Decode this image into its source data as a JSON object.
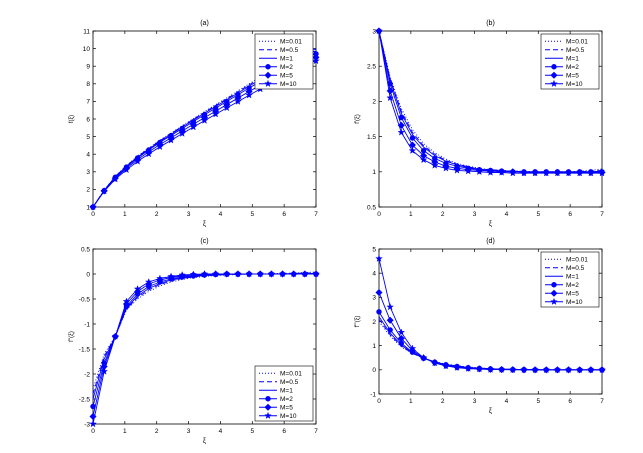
{
  "chart_data": [
    {
      "type": "line",
      "title": "(a)",
      "xlabel": "ξ",
      "ylabel": "f(ξ)",
      "xlim": [
        0,
        7
      ],
      "ylim": [
        1,
        11
      ],
      "xticks": [
        "0",
        "1",
        "2",
        "3",
        "4",
        "5",
        "6",
        "7"
      ],
      "yticks": [
        "1",
        "2",
        "3",
        "4",
        "5",
        "6",
        "7",
        "8",
        "9",
        "10",
        "11"
      ],
      "legend_position": "top-right",
      "x": [
        0,
        0.35,
        0.7,
        1.05,
        1.4,
        1.75,
        2.1,
        2.45,
        2.8,
        3.15,
        3.5,
        3.85,
        4.2,
        4.55,
        4.9,
        5.25,
        5.6,
        5.95,
        6.3,
        6.65,
        7.0
      ],
      "series": [
        {
          "name": "M=0.01",
          "values": [
            1.0,
            1.95,
            2.75,
            3.35,
            3.9,
            4.35,
            4.8,
            5.2,
            5.62,
            6.02,
            6.42,
            6.82,
            7.2,
            7.6,
            8.0,
            8.38,
            8.78,
            9.16,
            9.55,
            9.95,
            10.0
          ]
        },
        {
          "name": "M=0.5",
          "values": [
            1.0,
            1.95,
            2.74,
            3.33,
            3.87,
            4.32,
            4.77,
            5.17,
            5.58,
            5.98,
            6.38,
            6.77,
            7.15,
            7.55,
            7.94,
            8.32,
            8.71,
            9.09,
            9.48,
            9.86,
            9.95
          ]
        },
        {
          "name": "M=1",
          "values": [
            1.0,
            1.94,
            2.72,
            3.31,
            3.84,
            4.29,
            4.73,
            5.13,
            5.54,
            5.93,
            6.33,
            6.71,
            7.09,
            7.48,
            7.87,
            8.25,
            8.63,
            9.01,
            9.39,
            9.77,
            9.85
          ]
        },
        {
          "name": "M=2",
          "values": [
            1.0,
            1.93,
            2.69,
            3.27,
            3.79,
            4.24,
            4.67,
            5.06,
            5.46,
            5.85,
            6.24,
            6.62,
            7.0,
            7.38,
            7.76,
            8.13,
            8.51,
            8.88,
            9.25,
            9.63,
            9.7
          ]
        },
        {
          "name": "M=5",
          "values": [
            1.0,
            1.91,
            2.64,
            3.2,
            3.7,
            4.13,
            4.55,
            4.93,
            5.32,
            5.7,
            6.08,
            6.45,
            6.82,
            7.19,
            7.56,
            7.92,
            8.29,
            8.65,
            9.01,
            9.38,
            9.5
          ]
        },
        {
          "name": "M=10",
          "values": [
            1.0,
            1.89,
            2.58,
            3.11,
            3.59,
            4.01,
            4.42,
            4.79,
            5.17,
            5.54,
            5.91,
            6.27,
            6.63,
            6.99,
            7.35,
            7.7,
            8.06,
            8.41,
            8.76,
            9.12,
            9.3
          ]
        }
      ]
    },
    {
      "type": "line",
      "title": "(b)",
      "xlabel": "ξ",
      "ylabel": "f'(ξ)",
      "xlim": [
        0,
        7
      ],
      "ylim": [
        0.5,
        3
      ],
      "xticks": [
        "0",
        "1",
        "2",
        "3",
        "4",
        "5",
        "6",
        "7"
      ],
      "yticks": [
        "0.5",
        "1",
        "1.5",
        "2",
        "2.5",
        "3"
      ],
      "legend_position": "top-right",
      "x": [
        0,
        0.35,
        0.7,
        1.05,
        1.4,
        1.75,
        2.1,
        2.45,
        2.8,
        3.15,
        3.5,
        3.85,
        4.2,
        4.55,
        4.9,
        5.25,
        5.6,
        5.95,
        6.3,
        6.65,
        7.0
      ],
      "series": [
        {
          "name": "M=0.01",
          "values": [
            3.0,
            2.35,
            1.9,
            1.6,
            1.4,
            1.27,
            1.18,
            1.12,
            1.08,
            1.05,
            1.03,
            1.02,
            1.01,
            1.01,
            1.0,
            1.0,
            1.0,
            1.0,
            1.01,
            1.02,
            1.04
          ]
        },
        {
          "name": "M=0.5",
          "values": [
            3.0,
            2.32,
            1.86,
            1.56,
            1.37,
            1.25,
            1.16,
            1.11,
            1.07,
            1.04,
            1.03,
            1.02,
            1.01,
            1.0,
            1.0,
            1.0,
            1.0,
            1.0,
            1.0,
            1.01,
            1.02
          ]
        },
        {
          "name": "M=1",
          "values": [
            3.0,
            2.3,
            1.83,
            1.53,
            1.35,
            1.23,
            1.15,
            1.1,
            1.06,
            1.04,
            1.02,
            1.01,
            1.01,
            1.0,
            1.0,
            1.0,
            1.0,
            1.0,
            1.0,
            1.0,
            1.01
          ]
        },
        {
          "name": "M=2",
          "values": [
            3.0,
            2.25,
            1.77,
            1.48,
            1.3,
            1.19,
            1.12,
            1.08,
            1.05,
            1.03,
            1.02,
            1.01,
            1.0,
            1.0,
            1.0,
            1.0,
            1.0,
            1.0,
            1.0,
            1.0,
            1.0
          ]
        },
        {
          "name": "M=5",
          "values": [
            3.0,
            2.15,
            1.66,
            1.38,
            1.23,
            1.14,
            1.08,
            1.05,
            1.03,
            1.02,
            1.01,
            1.0,
            1.0,
            0.99,
            0.99,
            0.99,
            0.99,
            0.99,
            0.99,
            0.99,
            0.99
          ]
        },
        {
          "name": "M=10",
          "values": [
            3.0,
            2.05,
            1.56,
            1.3,
            1.17,
            1.09,
            1.05,
            1.02,
            1.01,
            1.0,
            0.99,
            0.99,
            0.98,
            0.98,
            0.98,
            0.98,
            0.98,
            0.98,
            0.98,
            0.98,
            0.98
          ]
        }
      ]
    },
    {
      "type": "line",
      "title": "(c)",
      "xlabel": "ξ",
      "ylabel": "f''(ξ)",
      "xlim": [
        0,
        7
      ],
      "ylim": [
        -3,
        0.5
      ],
      "xticks": [
        "0",
        "1",
        "2",
        "3",
        "4",
        "5",
        "6",
        "7"
      ],
      "yticks": [
        "-3",
        "-2.5",
        "-2",
        "-1.5",
        "-1",
        "-0.5",
        "0",
        "0.5"
      ],
      "legend_position": "bottom-right",
      "x": [
        0,
        0.35,
        0.7,
        1.05,
        1.4,
        1.75,
        2.1,
        2.45,
        2.8,
        3.15,
        3.5,
        3.85,
        4.2,
        4.55,
        4.9,
        5.25,
        5.6,
        5.95,
        6.3,
        6.65,
        7.0
      ],
      "series": [
        {
          "name": "M=0.01",
          "values": [
            -2.3,
            -1.6,
            -1.25,
            -0.72,
            -0.5,
            -0.35,
            -0.24,
            -0.16,
            -0.11,
            -0.07,
            -0.05,
            -0.03,
            -0.02,
            -0.01,
            0.0,
            0.0,
            0.01,
            0.01,
            0.02,
            0.03,
            0.04
          ]
        },
        {
          "name": "M=0.5",
          "values": [
            -2.4,
            -1.65,
            -1.25,
            -0.7,
            -0.47,
            -0.32,
            -0.21,
            -0.14,
            -0.09,
            -0.06,
            -0.04,
            -0.02,
            -0.01,
            -0.01,
            0.0,
            0.0,
            0.0,
            0.01,
            0.01,
            0.02,
            0.02
          ]
        },
        {
          "name": "M=1",
          "values": [
            -2.5,
            -1.7,
            -1.25,
            -0.68,
            -0.44,
            -0.29,
            -0.19,
            -0.12,
            -0.08,
            -0.05,
            -0.03,
            -0.02,
            -0.01,
            0.0,
            0.0,
            0.0,
            0.0,
            0.0,
            0.01,
            0.01,
            0.01
          ]
        },
        {
          "name": "M=2",
          "values": [
            -2.65,
            -1.78,
            -1.25,
            -0.65,
            -0.4,
            -0.25,
            -0.16,
            -0.1,
            -0.06,
            -0.04,
            -0.02,
            -0.01,
            0.0,
            0.0,
            0.0,
            0.0,
            0.0,
            0.0,
            0.0,
            0.0,
            0.0
          ]
        },
        {
          "name": "M=5",
          "values": [
            -2.85,
            -1.85,
            -1.25,
            -0.6,
            -0.35,
            -0.2,
            -0.12,
            -0.07,
            -0.04,
            -0.02,
            -0.01,
            0.0,
            0.0,
            0.0,
            0.0,
            0.0,
            0.0,
            0.0,
            0.0,
            0.0,
            0.0
          ]
        },
        {
          "name": "M=10",
          "values": [
            -3.0,
            -1.95,
            -1.25,
            -0.55,
            -0.3,
            -0.16,
            -0.09,
            -0.05,
            -0.02,
            -0.01,
            0.0,
            0.0,
            0.0,
            0.0,
            0.0,
            0.0,
            0.0,
            0.0,
            0.0,
            0.0,
            0.0
          ]
        }
      ]
    },
    {
      "type": "line",
      "title": "(d)",
      "xlabel": "ξ",
      "ylabel": "f'''(ξ)",
      "xlim": [
        0,
        7
      ],
      "ylim": [
        -1,
        5
      ],
      "xticks": [
        "0",
        "1",
        "2",
        "3",
        "4",
        "5",
        "6",
        "7"
      ],
      "yticks": [
        "-1",
        "0",
        "1",
        "2",
        "3",
        "4",
        "5"
      ],
      "legend_position": "top-right",
      "x": [
        0,
        0.35,
        0.7,
        1.05,
        1.4,
        1.75,
        2.1,
        2.45,
        2.8,
        3.15,
        3.5,
        3.85,
        4.2,
        4.55,
        4.9,
        5.25,
        5.6,
        5.95,
        6.3,
        6.65,
        7.0
      ],
      "series": [
        {
          "name": "M=0.01",
          "values": [
            2.0,
            1.4,
            0.95,
            0.68,
            0.48,
            0.34,
            0.24,
            0.17,
            0.12,
            0.08,
            0.05,
            0.03,
            0.02,
            0.01,
            0.01,
            0.0,
            0.0,
            0.0,
            0.0,
            0.0,
            0.0
          ]
        },
        {
          "name": "M=0.5",
          "values": [
            2.1,
            1.45,
            0.98,
            0.68,
            0.48,
            0.33,
            0.23,
            0.16,
            0.11,
            0.07,
            0.05,
            0.03,
            0.02,
            0.01,
            0.01,
            0.0,
            0.0,
            0.0,
            0.0,
            0.0,
            0.0
          ]
        },
        {
          "name": "M=1",
          "values": [
            2.2,
            1.52,
            1.02,
            0.7,
            0.48,
            0.33,
            0.22,
            0.15,
            0.1,
            0.07,
            0.04,
            0.03,
            0.02,
            0.01,
            0.0,
            0.0,
            0.0,
            0.0,
            0.0,
            0.0,
            0.0
          ]
        },
        {
          "name": "M=2",
          "values": [
            2.4,
            1.65,
            1.1,
            0.73,
            0.48,
            0.32,
            0.21,
            0.14,
            0.09,
            0.06,
            0.04,
            0.02,
            0.01,
            0.01,
            0.0,
            0.0,
            0.0,
            0.0,
            0.0,
            0.0,
            0.0
          ]
        },
        {
          "name": "M=5",
          "values": [
            3.2,
            2.05,
            1.3,
            0.8,
            0.49,
            0.3,
            0.18,
            0.11,
            0.07,
            0.04,
            0.02,
            0.01,
            0.01,
            0.0,
            0.0,
            0.0,
            0.0,
            0.0,
            0.0,
            0.0,
            0.0
          ]
        },
        {
          "name": "M=10",
          "values": [
            4.6,
            2.6,
            1.55,
            0.88,
            0.5,
            0.28,
            0.16,
            0.09,
            0.05,
            0.03,
            0.01,
            0.01,
            0.0,
            0.0,
            0.0,
            0.0,
            0.0,
            0.0,
            0.0,
            0.0,
            0.0
          ]
        }
      ]
    }
  ],
  "style": {
    "series_color": "#0000ff",
    "axis_color": "#000000",
    "markers": [
      "none",
      "none",
      "none",
      "circle",
      "diamond",
      "star"
    ],
    "dashes": [
      "1,2",
      "5,3",
      "none",
      "none",
      "none",
      "none"
    ]
  }
}
